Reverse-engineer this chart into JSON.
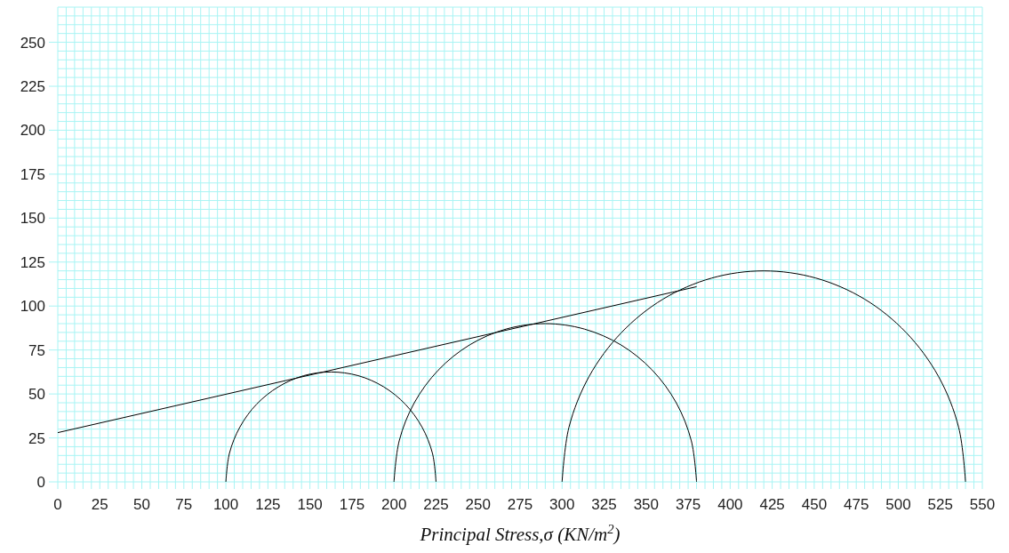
{
  "chart_data": {
    "type": "line",
    "xlabel": "Principal Stress,σ (KN/m$^{2}$)",
    "xlim": [
      0,
      550
    ],
    "xticks": [
      0,
      25,
      50,
      75,
      100,
      125,
      150,
      175,
      200,
      225,
      250,
      275,
      300,
      325,
      350,
      375,
      400,
      425,
      450,
      475,
      500,
      525,
      550
    ],
    "ylim": [
      0,
      270
    ],
    "yticks": [
      0,
      25,
      50,
      75,
      100,
      125,
      150,
      175,
      200,
      225,
      250
    ],
    "grid": true,
    "marker": "none",
    "line_style": "solid",
    "series": [
      {
        "color": "#000000",
        "x": [
          100,
          102.1,
          108.4,
          118.3,
          131.3,
          146.3,
          162.5,
          178.7,
          193.8,
          206.7,
          216.6,
          222.9,
          225
        ],
        "values": [
          0,
          16.2,
          31.3,
          44.2,
          54.1,
          60.4,
          62.5,
          60.4,
          54.1,
          44.2,
          31.3,
          16.2,
          0
        ]
      },
      {
        "color": "#000000",
        "x": [
          200,
          203.1,
          212.1,
          226.4,
          245,
          266.7,
          290,
          313.3,
          335,
          353.6,
          367.9,
          376.9,
          380
        ],
        "values": [
          0,
          23.3,
          45,
          63.6,
          77.9,
          86.9,
          90,
          86.9,
          77.9,
          63.6,
          45,
          23.3,
          0
        ]
      },
      {
        "color": "#000000",
        "x": [
          300,
          304.1,
          316.1,
          335.2,
          360,
          389,
          420,
          451,
          480,
          504.8,
          523.9,
          535.9,
          540
        ],
        "values": [
          0,
          31.1,
          60,
          84.8,
          103.9,
          115.9,
          120,
          115.9,
          103.9,
          84.8,
          60,
          31.1,
          0
        ]
      },
      {
        "color": "#000000",
        "x": [
          0,
          380
        ],
        "values": [
          28,
          111
        ]
      }
    ]
  }
}
